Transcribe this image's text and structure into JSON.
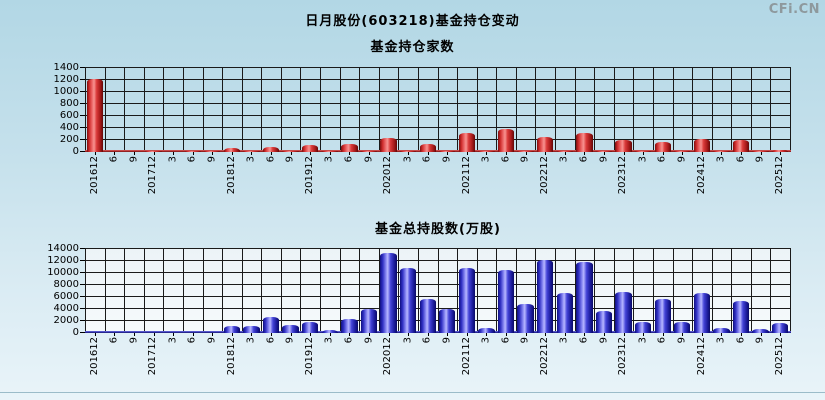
{
  "page": {
    "title": "日月股份(603218)基金持仓变动",
    "watermark": "CFi.CN"
  },
  "colors": {
    "background_top": "#b2d7e5",
    "background_bottom": "#e9f4f9",
    "grid": "#1a1a1a",
    "bar_red": "#cc2222",
    "bar_blue": "#2a2ac8",
    "watermark_gray": "#8e999d"
  },
  "chart_data": [
    {
      "type": "bar",
      "key": "fund-holder-count",
      "title": "基金持仓家数",
      "categories": [
        "201612",
        "6",
        "9",
        "201712",
        "3",
        "6",
        "9",
        "201812",
        "3",
        "6",
        "9",
        "201912",
        "3",
        "6",
        "9",
        "202012",
        "3",
        "6",
        "9",
        "202112",
        "3",
        "6",
        "9",
        "202212",
        "3",
        "6",
        "9",
        "202312",
        "3",
        "6",
        "9",
        "202412",
        "3",
        "6",
        "9",
        "202512"
      ],
      "values": [
        1220,
        5,
        5,
        10,
        5,
        10,
        10,
        60,
        15,
        90,
        20,
        110,
        15,
        135,
        25,
        235,
        20,
        140,
        20,
        320,
        15,
        385,
        20,
        245,
        20,
        320,
        15,
        205,
        15,
        165,
        10,
        220,
        10,
        195,
        10,
        35
      ],
      "xlabel": "",
      "ylabel": "",
      "ylim": [
        0,
        1400
      ],
      "ytick_step": 200,
      "ytick_labels": [
        "0",
        "200",
        "400",
        "600",
        "800",
        "1000",
        "1200",
        "1400"
      ],
      "grid": true,
      "legend": "none",
      "bar_class": "bar-red",
      "baseline_class": "baseline-red",
      "plot_bg": "transparent"
    },
    {
      "type": "bar",
      "key": "fund-total-shares",
      "title": "基金总持股数(万股)",
      "categories": [
        "201612",
        "6",
        "9",
        "201712",
        "3",
        "6",
        "9",
        "201812",
        "3",
        "6",
        "9",
        "201912",
        "3",
        "6",
        "9",
        "202012",
        "3",
        "6",
        "9",
        "202112",
        "3",
        "6",
        "9",
        "202212",
        "3",
        "6",
        "9",
        "202312",
        "3",
        "6",
        "9",
        "202412",
        "3",
        "6",
        "9",
        "202512"
      ],
      "values": [
        80,
        30,
        30,
        50,
        30,
        50,
        50,
        1100,
        1150,
        2600,
        1300,
        1800,
        500,
        2300,
        4000,
        13400,
        10800,
        5600,
        3950,
        10900,
        800,
        10500,
        4800,
        12100,
        6600,
        11800,
        3700,
        6800,
        1900,
        5700,
        1800,
        6600,
        900,
        5400,
        700,
        1600
      ],
      "xlabel": "",
      "ylabel": "",
      "ylim": [
        0,
        14000
      ],
      "ytick_step": 2000,
      "ytick_labels": [
        "0",
        "2000",
        "4000",
        "6000",
        "8000",
        "10000",
        "12000",
        "14000"
      ],
      "grid": true,
      "legend": "none",
      "bar_class": "bar-blue",
      "baseline_class": "baseline-blue",
      "plot_bg": "linear-gradient(180deg,#ecf3f7,#f6fafc)"
    }
  ]
}
